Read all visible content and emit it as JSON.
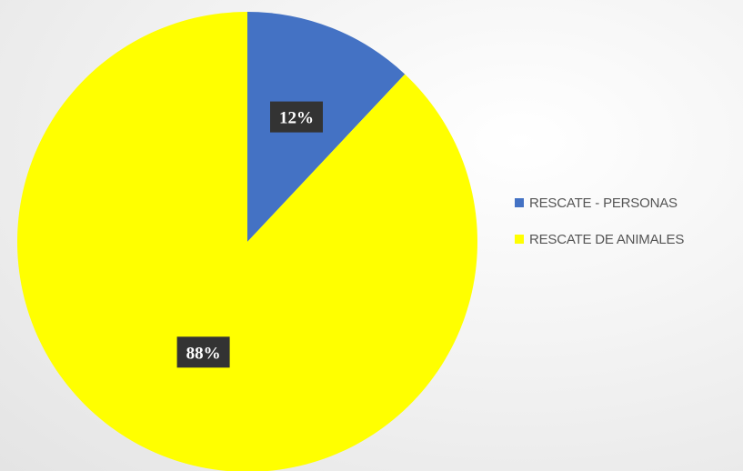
{
  "chart_data": {
    "type": "pie",
    "title": "",
    "categories": [
      "RESCATE - PERSONAS",
      "RESCATE DE ANIMALES"
    ],
    "values": [
      12,
      88
    ],
    "labels": [
      "12%",
      "88%"
    ],
    "colors": [
      "#4472c4",
      "#ffff00"
    ],
    "legend_position": "right",
    "start_angle_deg": 0,
    "direction": "clockwise"
  },
  "legend": {
    "items": [
      {
        "label": "RESCATE - PERSONAS",
        "color": "#4472c4"
      },
      {
        "label": "RESCATE DE ANIMALES",
        "color": "#ffff00"
      }
    ]
  }
}
